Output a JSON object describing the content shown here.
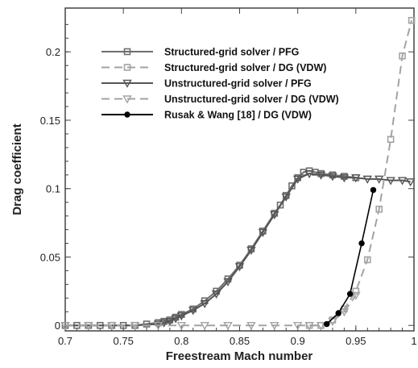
{
  "chart_data": {
    "type": "line",
    "title": "",
    "xlabel": "Freestream Mach number",
    "ylabel": "Drag coefficient",
    "xlim": [
      0.7,
      1.0
    ],
    "ylim": [
      -0.004,
      0.232
    ],
    "xticks": [
      0.7,
      0.75,
      0.8,
      0.85,
      0.9,
      0.95,
      1.0
    ],
    "xtick_labels": [
      "0.7",
      "0.75",
      "0.8",
      "0.85",
      "0.9",
      "0.95",
      "1"
    ],
    "yticks": [
      0,
      0.05,
      0.1,
      0.15,
      0.2
    ],
    "ytick_labels": [
      "0",
      "0.05",
      "0.1",
      "0.15",
      "0.2"
    ],
    "grid": false,
    "legend_position": "top-left",
    "series": [
      {
        "name": "Structured-grid solver / PFG",
        "color": "#6e6e6e",
        "dashed": false,
        "marker": "square",
        "x": [
          0.7,
          0.71,
          0.72,
          0.73,
          0.74,
          0.75,
          0.76,
          0.77,
          0.78,
          0.785,
          0.79,
          0.795,
          0.8,
          0.81,
          0.82,
          0.83,
          0.84,
          0.85,
          0.86,
          0.87,
          0.88,
          0.885,
          0.89,
          0.895,
          0.9,
          0.905,
          0.91,
          0.915,
          0.92,
          0.93,
          0.94,
          0.95
        ],
        "y": [
          0.0,
          0.0,
          0.0,
          0.0,
          0.0,
          0.0,
          0.0,
          0.001,
          0.002,
          0.003,
          0.004,
          0.006,
          0.008,
          0.012,
          0.018,
          0.025,
          0.034,
          0.044,
          0.056,
          0.069,
          0.082,
          0.088,
          0.095,
          0.102,
          0.108,
          0.112,
          0.113,
          0.112,
          0.111,
          0.11,
          0.109,
          0.108
        ]
      },
      {
        "name": "Structured-grid solver / DG (VDW)",
        "color": "#a3a3a3",
        "dashed": true,
        "marker": "square",
        "x": [
          0.91,
          0.92,
          0.93,
          0.94,
          0.95,
          0.96,
          0.97,
          0.98,
          0.99,
          0.998
        ],
        "y": [
          0.0,
          0.0,
          0.004,
          0.012,
          0.025,
          0.048,
          0.085,
          0.136,
          0.197,
          0.223
        ]
      },
      {
        "name": "Unstructured-grid solver / PFG",
        "color": "#555555",
        "dashed": false,
        "marker": "triangle",
        "x": [
          0.7,
          0.72,
          0.74,
          0.76,
          0.78,
          0.785,
          0.79,
          0.795,
          0.8,
          0.81,
          0.82,
          0.83,
          0.84,
          0.85,
          0.86,
          0.87,
          0.88,
          0.89,
          0.9,
          0.91,
          0.92,
          0.93,
          0.94,
          0.95,
          0.96,
          0.97,
          0.98,
          0.99,
          0.997
        ],
        "y": [
          0.0,
          0.0,
          0.0,
          0.0,
          0.001,
          0.002,
          0.003,
          0.005,
          0.007,
          0.011,
          0.016,
          0.023,
          0.032,
          0.043,
          0.055,
          0.068,
          0.081,
          0.094,
          0.107,
          0.111,
          0.11,
          0.109,
          0.108,
          0.108,
          0.107,
          0.107,
          0.106,
          0.106,
          0.105
        ]
      },
      {
        "name": "Unstructured-grid solver / DG (VDW)",
        "color": "#a3a3a3",
        "dashed": true,
        "marker": "triangle",
        "x": [
          0.7,
          0.72,
          0.74,
          0.76,
          0.78,
          0.8,
          0.82,
          0.84,
          0.86,
          0.88,
          0.9,
          0.91,
          0.92,
          0.93,
          0.94,
          0.95
        ],
        "y": [
          0.0,
          0.0,
          0.0,
          0.0,
          0.0,
          0.0,
          0.0,
          0.0,
          0.0,
          0.0,
          0.0,
          0.0,
          0.0,
          0.003,
          0.01,
          0.022
        ]
      },
      {
        "name": "Rusak & Wang [18] / DG (VDW)",
        "color": "#000000",
        "dashed": false,
        "marker": "circle",
        "x": [
          0.925,
          0.935,
          0.945,
          0.955,
          0.965
        ],
        "y": [
          0.001,
          0.009,
          0.023,
          0.06,
          0.099
        ]
      }
    ]
  }
}
